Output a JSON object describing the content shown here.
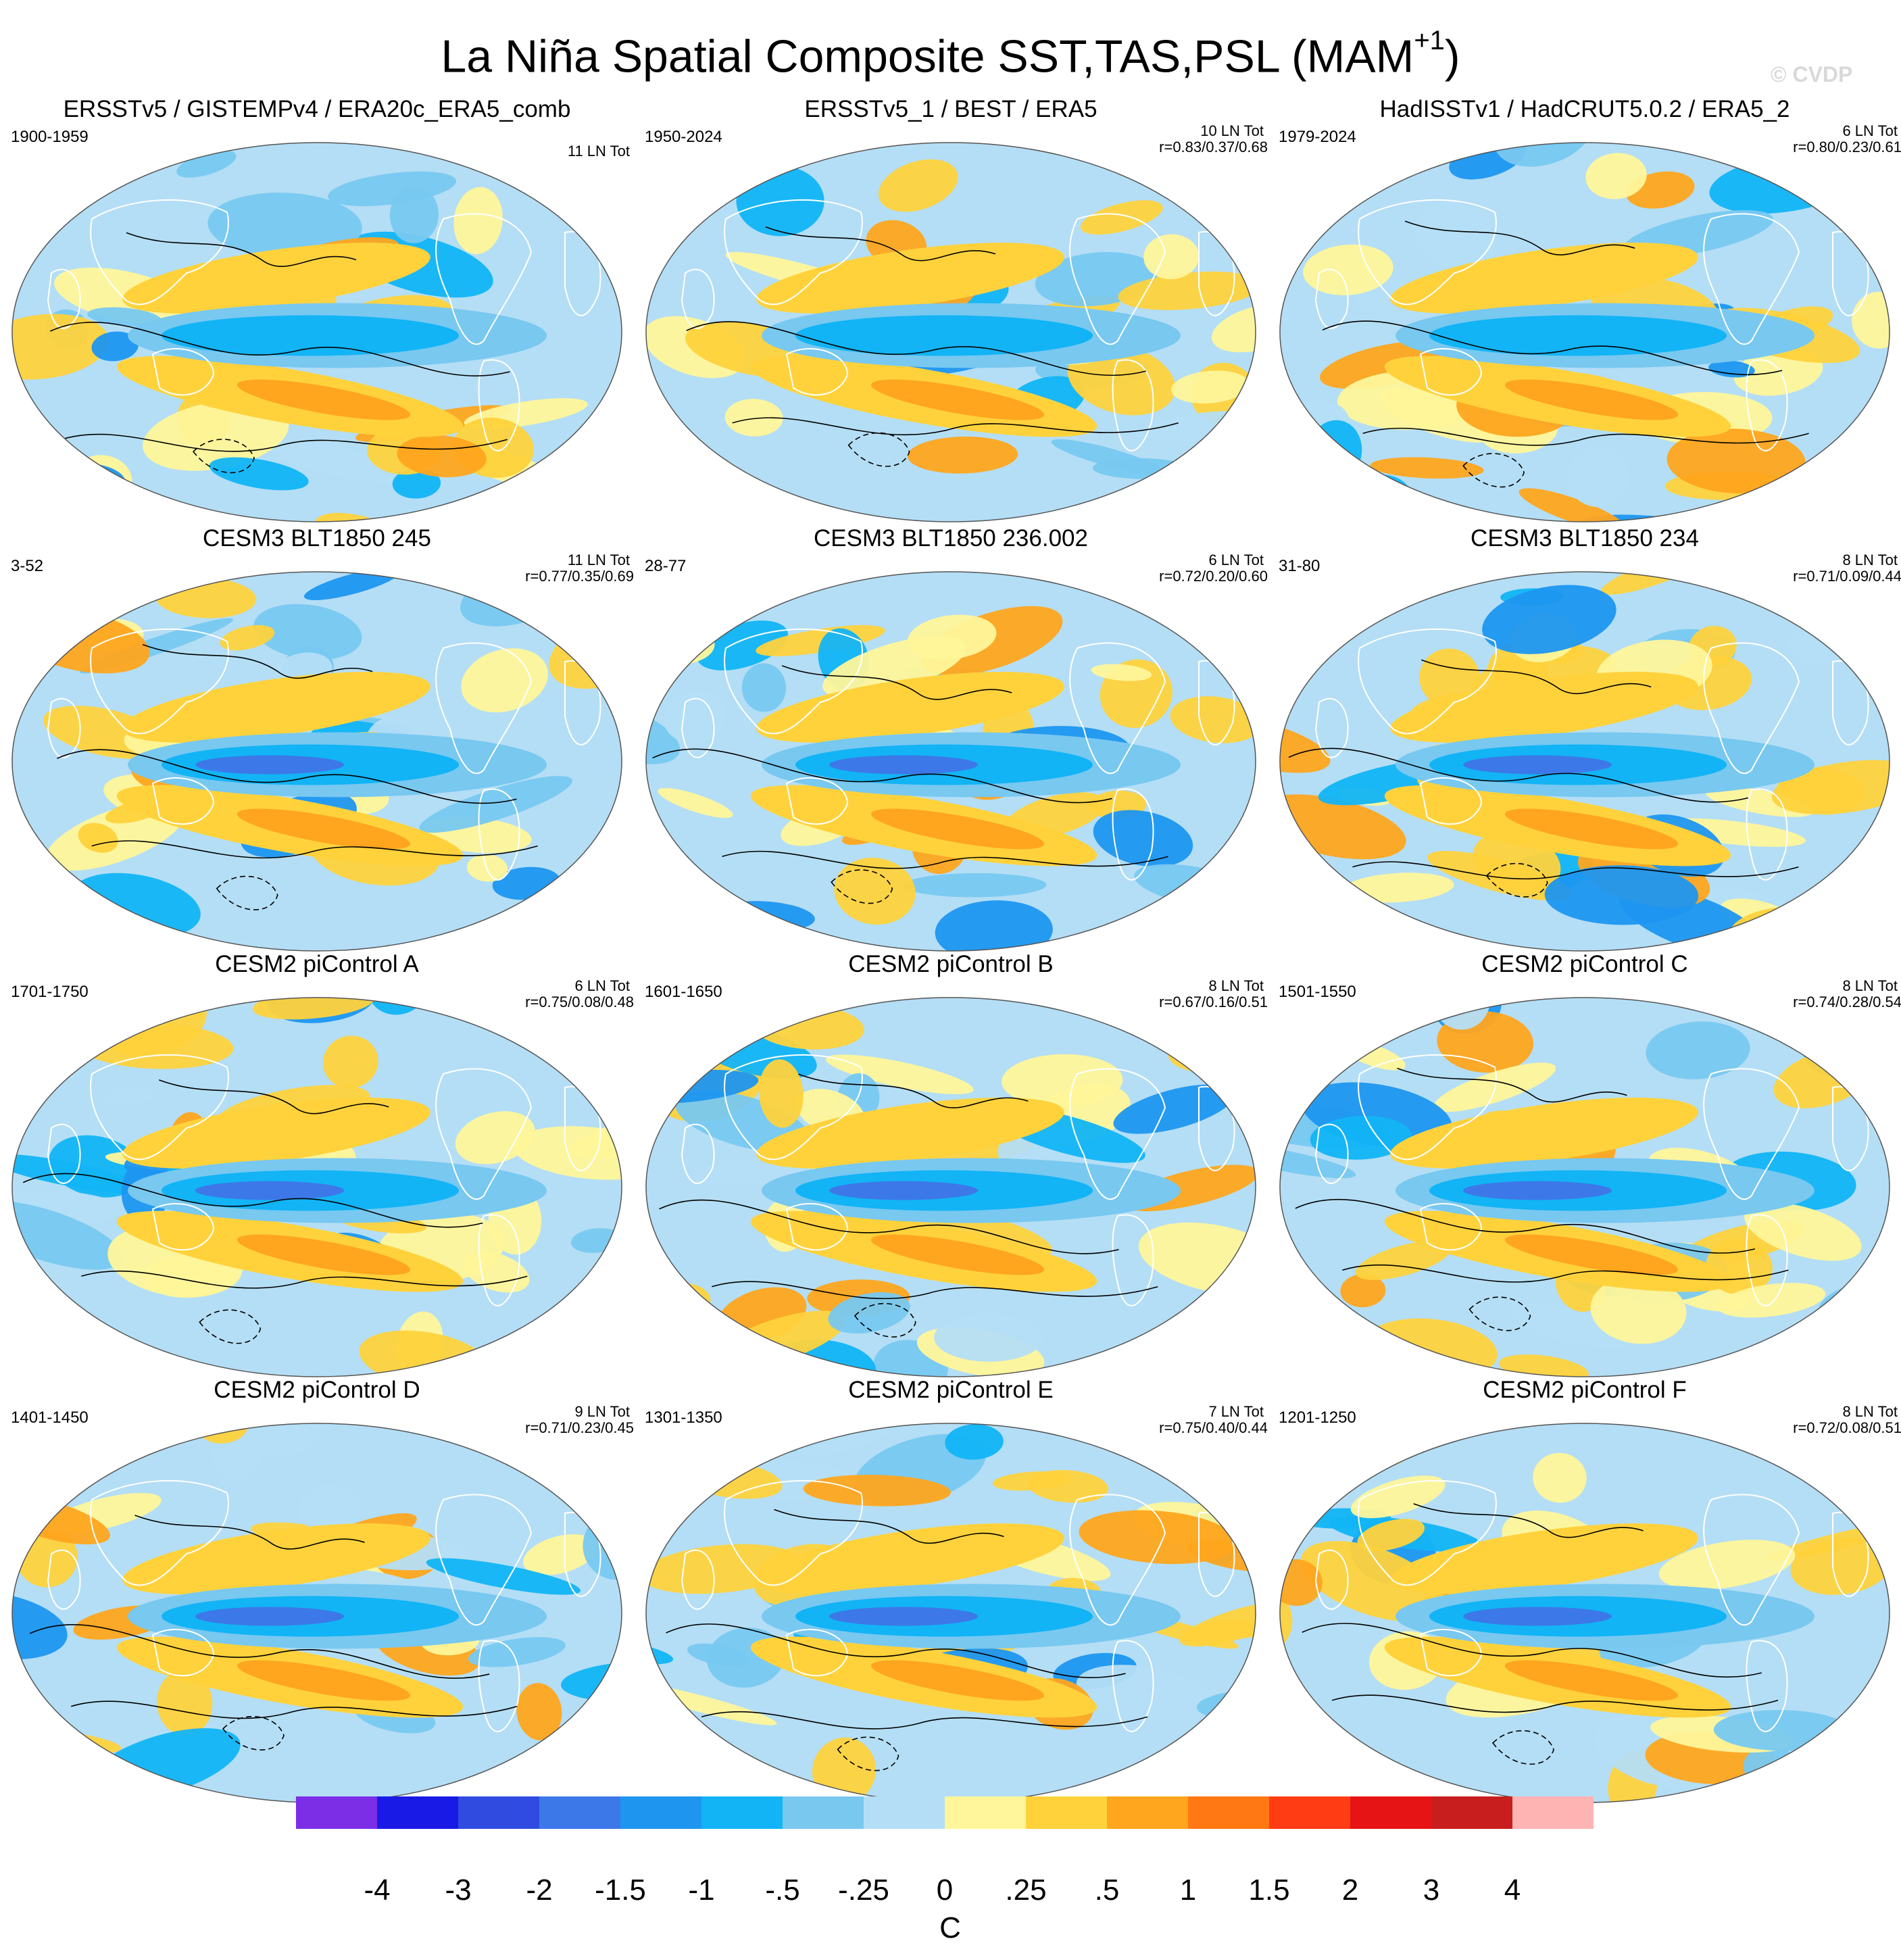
{
  "title": "La Niña Spatial Composite SST,TAS,PSL (MAM",
  "title_superscript": "+1",
  "title_close": ")",
  "watermark": "© CVDP",
  "panels": [
    {
      "title": "ERSSTv5 / GISTEMPv4 / ERA20c_ERA5_comb",
      "period": "1900-1959",
      "count": "11 LN Tot",
      "corr": ""
    },
    {
      "title": "ERSSTv5_1 / BEST / ERA5",
      "period": "1950-2024",
      "count": "10 LN Tot",
      "corr": "r=0.83/0.37/0.68"
    },
    {
      "title": "HadISSTv1 / HadCRUT5.0.2 / ERA5_2",
      "period": "1979-2024",
      "count": "6 LN Tot",
      "corr": "r=0.80/0.23/0.61"
    },
    {
      "title": "CESM3 BLT1850 245",
      "period": "3-52",
      "count": "11 LN Tot",
      "corr": "r=0.77/0.35/0.69"
    },
    {
      "title": "CESM3 BLT1850 236.002",
      "period": "28-77",
      "count": "6 LN Tot",
      "corr": "r=0.72/0.20/0.60"
    },
    {
      "title": "CESM3 BLT1850 234",
      "period": "31-80",
      "count": "8 LN Tot",
      "corr": "r=0.71/0.09/0.44"
    },
    {
      "title": "CESM2 piControl A",
      "period": "1701-1750",
      "count": "6 LN Tot",
      "corr": "r=0.75/0.08/0.48"
    },
    {
      "title": "CESM2 piControl B",
      "period": "1601-1650",
      "count": "8 LN Tot",
      "corr": "r=0.67/0.16/0.51"
    },
    {
      "title": "CESM2 piControl C",
      "period": "1501-1550",
      "count": "8 LN Tot",
      "corr": "r=0.74/0.28/0.54"
    },
    {
      "title": "CESM2 piControl D",
      "period": "1401-1450",
      "count": "9 LN Tot",
      "corr": "r=0.71/0.23/0.45"
    },
    {
      "title": "CESM2 piControl E",
      "period": "1301-1350",
      "count": "7 LN Tot",
      "corr": "r=0.75/0.40/0.44"
    },
    {
      "title": "CESM2 piControl F",
      "period": "1201-1250",
      "count": "8 LN Tot",
      "corr": "r=0.72/0.08/0.51"
    }
  ],
  "colorbar": {
    "units": "C",
    "labels": [
      "-4",
      "-3",
      "-2",
      "-1.5",
      "-1",
      "-.5",
      "-.25",
      "0",
      ".25",
      ".5",
      "1",
      "1.5",
      "2",
      "3",
      "4"
    ],
    "colors": [
      "#7b2ee6",
      "#1a1ae6",
      "#2f4be0",
      "#3c78e8",
      "#1e96f0",
      "#12b4f5",
      "#78c8f0",
      "#b4def5",
      "#fff59a",
      "#ffd23c",
      "#ffa51e",
      "#ff7814",
      "#ff3c14",
      "#e61414",
      "#c81e1e",
      "#ffb4b4"
    ]
  },
  "palette": {
    "ocean_bg": "#b4def5",
    "land_line": "#ffffff",
    "contour": "#000000"
  }
}
